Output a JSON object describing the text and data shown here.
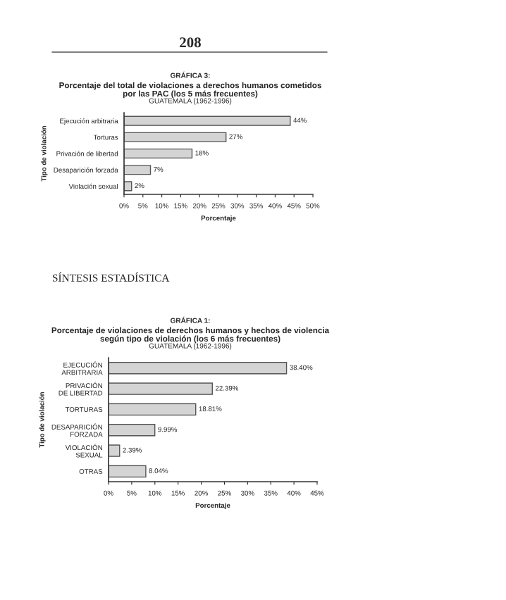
{
  "chart_data": [
    {
      "type": "bar",
      "orientation": "horizontal",
      "title": "GRÁFICA 3:",
      "subtitle": "Porcentaje del total de violaciones a derechos humanos cometidos\npor las PAC (los 5 más frecuentes)",
      "annotations": [
        "GUATEMALA (1962-1996)",
        "208"
      ],
      "xlabel": "Porcentaje",
      "ylabel": "Tipo de violación",
      "categories": [
        "Ejecución arbitraria",
        "Torturas",
        "Privación de libertad",
        "Desaparición forzada",
        "Violación sexual"
      ],
      "values": [
        44,
        27,
        18,
        7,
        2
      ],
      "value_labels": [
        "44%",
        "27%",
        "18%",
        "7%",
        "2%"
      ],
      "color": "#d4d4d4",
      "xlim": [
        0,
        50
      ],
      "xticks": [
        {
          "value": 0,
          "label": "0%"
        },
        {
          "value": 5,
          "label": "5%"
        },
        {
          "value": 10,
          "label": "10%"
        },
        {
          "value": 15,
          "label": "15%"
        },
        {
          "value": 20,
          "label": "20%"
        },
        {
          "value": 25,
          "label": "25%"
        },
        {
          "value": 30,
          "label": "30%"
        },
        {
          "value": 35,
          "label": "35%"
        },
        {
          "value": 40,
          "label": "40%"
        },
        {
          "value": 45,
          "label": "45%"
        },
        {
          "value": 50,
          "label": "50%"
        }
      ],
      "grid": false,
      "legend": false
    },
    {
      "type": "bar",
      "orientation": "horizontal",
      "title": "GRÁFICA 1:",
      "subtitle": "Porcentaje de violaciones de derechos humanos y hechos de violencia\nsegún tipo de violación (los 6 más frecuentes)",
      "annotations": [
        "GUATEMALA (1962-1996)",
        "SÍNTESIS ESTADÍSTICA"
      ],
      "xlabel": "Porcentaje",
      "ylabel": "Tipo de violación",
      "categories": [
        "EJECUCIÓN\nARBITRARIA",
        "PRIVACIÓN\nDE LIBERTAD",
        "TORTURAS",
        "DESAPARICIÓN\nFORZADA",
        "VIOLACIÓN\nSEXUAL",
        "OTRAS"
      ],
      "values": [
        38.4,
        22.39,
        18.81,
        9.99,
        2.39,
        8.04
      ],
      "value_labels": [
        "38.40%",
        "22.39%",
        "18.81%",
        "9.99%",
        "2.39%",
        "8.04%"
      ],
      "color": "#d4d4d4",
      "xlim": [
        0,
        45
      ],
      "xticks": [
        {
          "value": 0,
          "label": "0%"
        },
        {
          "value": 5,
          "label": "5%"
        },
        {
          "value": 10,
          "label": "10%"
        },
        {
          "value": 15,
          "label": "15%"
        },
        {
          "value": 20,
          "label": "20%"
        },
        {
          "value": 25,
          "label": "25%"
        },
        {
          "value": 30,
          "label": "30%"
        },
        {
          "value": 35,
          "label": "35%"
        },
        {
          "value": 40,
          "label": "40%"
        },
        {
          "value": 45,
          "label": "45%"
        }
      ],
      "grid": false,
      "legend": false
    }
  ]
}
